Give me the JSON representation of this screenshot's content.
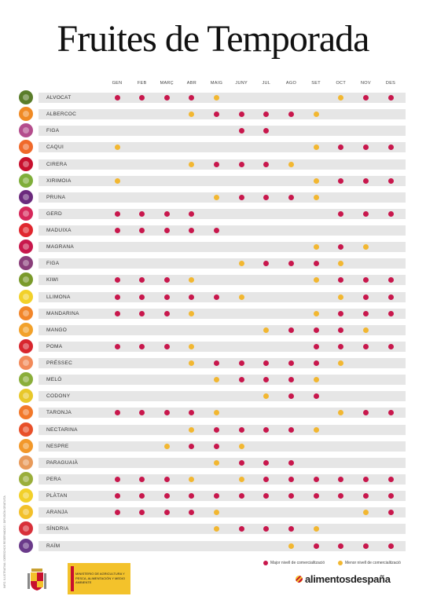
{
  "title": "Fruites de Temporada",
  "months": [
    "GEN",
    "FEB",
    "MARÇ",
    "ABR",
    "MAIG",
    "JUNY",
    "JUL",
    "AGO",
    "SET",
    "OCT",
    "NOV",
    "DES"
  ],
  "colors": {
    "high": "#c8174c",
    "low": "#f2b731",
    "bar": "#e6e6e6"
  },
  "legend": {
    "high_label": "Major nivell de comercialització",
    "low_label": "Menor nivell de comercialització"
  },
  "fruits": [
    {
      "name": "ALVOCAT",
      "icon": "avocado-icon",
      "icon_color": "#5a7d2a",
      "months": [
        "H",
        "H",
        "H",
        "H",
        "L",
        null,
        null,
        null,
        null,
        "L",
        "H",
        "H"
      ]
    },
    {
      "name": "ALBERCOC",
      "icon": "apricot-icon",
      "icon_color": "#f08a24",
      "months": [
        null,
        null,
        null,
        "L",
        "H",
        "H",
        "H",
        "H",
        "L",
        null,
        null,
        null
      ]
    },
    {
      "name": "FIGA",
      "icon": "fig-icon",
      "icon_color": "#b44d8c",
      "months": [
        null,
        null,
        null,
        null,
        null,
        "H",
        "H",
        null,
        null,
        null,
        null,
        null
      ]
    },
    {
      "name": "CAQUI",
      "icon": "persimmon-icon",
      "icon_color": "#f0692a",
      "months": [
        "L",
        null,
        null,
        null,
        null,
        null,
        null,
        null,
        "L",
        "H",
        "H",
        "H"
      ]
    },
    {
      "name": "CIRERA",
      "icon": "cherry-icon",
      "icon_color": "#c8102e",
      "months": [
        null,
        null,
        null,
        "L",
        "H",
        "H",
        "H",
        "L",
        null,
        null,
        null,
        null
      ]
    },
    {
      "name": "XIRIMOIA",
      "icon": "cherimoya-icon",
      "icon_color": "#7fae3a",
      "months": [
        "L",
        null,
        null,
        null,
        null,
        null,
        null,
        null,
        "L",
        "H",
        "H",
        "H"
      ]
    },
    {
      "name": "PRUNA",
      "icon": "plum-icon",
      "icon_color": "#6b2a7d",
      "months": [
        null,
        null,
        null,
        null,
        "L",
        "H",
        "H",
        "H",
        "L",
        null,
        null,
        null
      ]
    },
    {
      "name": "GERD",
      "icon": "raspberry-icon",
      "icon_color": "#d6285a",
      "months": [
        "H",
        "H",
        "H",
        "H",
        null,
        null,
        null,
        null,
        null,
        "H",
        "H",
        "H"
      ]
    },
    {
      "name": "MADUIXA",
      "icon": "strawberry-icon",
      "icon_color": "#e0262e",
      "months": [
        "H",
        "H",
        "H",
        "H",
        "H",
        null,
        null,
        null,
        null,
        null,
        null,
        null
      ]
    },
    {
      "name": "MAGRANA",
      "icon": "pomegranate-icon",
      "icon_color": "#c8174c",
      "months": [
        null,
        null,
        null,
        null,
        null,
        null,
        null,
        null,
        "L",
        "H",
        "L",
        null
      ]
    },
    {
      "name": "FIGA",
      "icon": "fig-icon",
      "icon_color": "#8a3e7a",
      "months": [
        null,
        null,
        null,
        null,
        null,
        "L",
        "H",
        "H",
        "H",
        "L",
        null,
        null
      ]
    },
    {
      "name": "KIWI",
      "icon": "kiwi-icon",
      "icon_color": "#7a9a2a",
      "months": [
        "H",
        "H",
        "H",
        "L",
        null,
        null,
        null,
        null,
        "L",
        "H",
        "H",
        "H"
      ]
    },
    {
      "name": "LLIMONA",
      "icon": "lemon-icon",
      "icon_color": "#f2d12a",
      "months": [
        "H",
        "H",
        "H",
        "H",
        "H",
        "L",
        null,
        null,
        null,
        "L",
        "H",
        "H"
      ]
    },
    {
      "name": "MANDARINA",
      "icon": "mandarin-icon",
      "icon_color": "#f2862a",
      "months": [
        "H",
        "H",
        "H",
        "L",
        null,
        null,
        null,
        null,
        "L",
        "H",
        "H",
        "H"
      ]
    },
    {
      "name": "MANGO",
      "icon": "mango-icon",
      "icon_color": "#f2a12a",
      "months": [
        null,
        null,
        null,
        null,
        null,
        null,
        "L",
        "H",
        "H",
        "H",
        "L",
        null
      ]
    },
    {
      "name": "POMA",
      "icon": "apple-icon",
      "icon_color": "#d8262e",
      "months": [
        "H",
        "H",
        "H",
        "L",
        null,
        null,
        null,
        null,
        "H",
        "H",
        "H",
        "H"
      ]
    },
    {
      "name": "PRÉSSEC",
      "icon": "peach-icon",
      "icon_color": "#f28a5a",
      "months": [
        null,
        null,
        null,
        "L",
        "H",
        "H",
        "H",
        "H",
        "H",
        "L",
        null,
        null
      ]
    },
    {
      "name": "MELÓ",
      "icon": "melon-icon",
      "icon_color": "#8aae3a",
      "months": [
        null,
        null,
        null,
        null,
        "L",
        "H",
        "H",
        "H",
        "L",
        null,
        null,
        null
      ]
    },
    {
      "name": "CODONY",
      "icon": "quince-icon",
      "icon_color": "#e8c82a",
      "months": [
        null,
        null,
        null,
        null,
        null,
        null,
        "L",
        "H",
        "H",
        null,
        null,
        null
      ]
    },
    {
      "name": "TARONJA",
      "icon": "orange-icon",
      "icon_color": "#f2782a",
      "months": [
        "H",
        "H",
        "H",
        "H",
        "L",
        null,
        null,
        null,
        null,
        "L",
        "H",
        "H"
      ]
    },
    {
      "name": "NECTARINA",
      "icon": "nectarine-icon",
      "icon_color": "#e8502a",
      "months": [
        null,
        null,
        null,
        "L",
        "H",
        "H",
        "H",
        "H",
        "L",
        null,
        null,
        null
      ]
    },
    {
      "name": "NESPRE",
      "icon": "loquat-icon",
      "icon_color": "#f2982a",
      "months": [
        null,
        null,
        "L",
        "H",
        "H",
        "L",
        null,
        null,
        null,
        null,
        null,
        null
      ]
    },
    {
      "name": "PARAGUAIÀ",
      "icon": "flat-peach-icon",
      "icon_color": "#e89a5a",
      "months": [
        null,
        null,
        null,
        null,
        "L",
        "H",
        "H",
        "H",
        null,
        null,
        null,
        null
      ]
    },
    {
      "name": "PERA",
      "icon": "pear-icon",
      "icon_color": "#9aae3a",
      "months": [
        "H",
        "H",
        "H",
        "L",
        null,
        "L",
        "H",
        "H",
        "H",
        "H",
        "H",
        "H"
      ]
    },
    {
      "name": "PLÀTAN",
      "icon": "banana-icon",
      "icon_color": "#f2d02a",
      "months": [
        "H",
        "H",
        "H",
        "H",
        "H",
        "H",
        "H",
        "H",
        "H",
        "H",
        "H",
        "H"
      ]
    },
    {
      "name": "ARANJA",
      "icon": "grapefruit-icon",
      "icon_color": "#f2c02a",
      "months": [
        "H",
        "H",
        "H",
        "H",
        "L",
        null,
        null,
        null,
        null,
        null,
        "L",
        "H"
      ]
    },
    {
      "name": "SÍNDRIA",
      "icon": "watermelon-icon",
      "icon_color": "#d8303a",
      "months": [
        null,
        null,
        null,
        null,
        "L",
        "H",
        "H",
        "H",
        "L",
        null,
        null,
        null
      ]
    },
    {
      "name": "RAÏM",
      "icon": "grape-icon",
      "icon_color": "#6a3a8a",
      "months": [
        null,
        null,
        null,
        null,
        null,
        null,
        null,
        "L",
        "H",
        "H",
        "H",
        "H"
      ]
    }
  ],
  "side_text": "INFO. ILUSTRATIVA / DERECHOS RESERVADOS / DIFUSIÓN GRATUITA",
  "ministry_text": "MINISTERIO DE AGRICULTURA Y PESCA, ALIMENTACIÓN Y MEDIO AMBIENTE",
  "brand_text": "alimentosdespaña"
}
